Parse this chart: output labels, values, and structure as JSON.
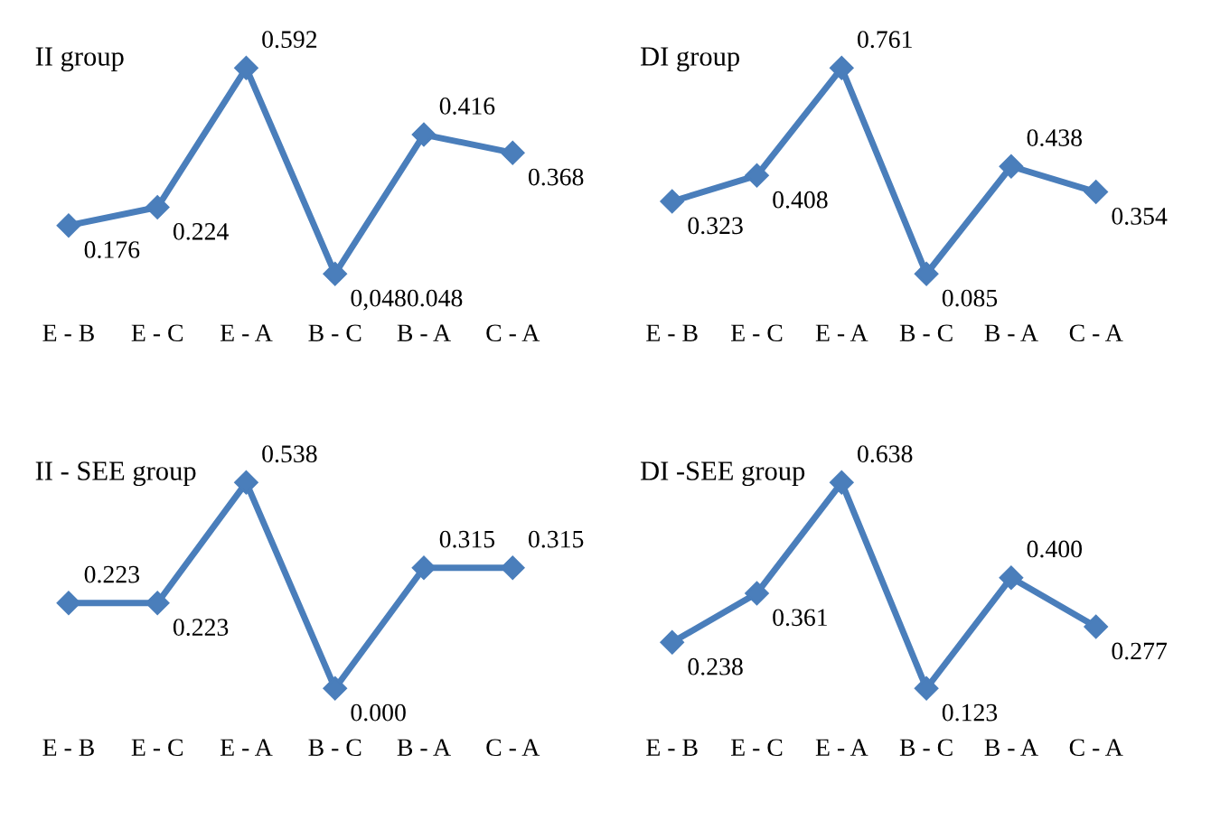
{
  "chart_data": [
    {
      "type": "line",
      "title": "II group",
      "categories": [
        "E - B",
        "E - C",
        "E - A",
        "B - C",
        "B - A",
        "C - A"
      ],
      "marker": "diamond",
      "tick_labels": "x",
      "series": [
        {
          "color": "#4a7ebb",
          "values": [
            0.176,
            0.224,
            0.592,
            0.048,
            0.416,
            0.368
          ],
          "value_labels": [
            "0.176",
            "0.224",
            "0.592",
            "0,0480.048",
            "0.416",
            "0.368"
          ]
        }
      ]
    },
    {
      "type": "line",
      "title": "DI group",
      "categories": [
        "E - B",
        "E - C",
        "E - A",
        "B - C",
        "B - A",
        "C - A"
      ],
      "marker": "diamond",
      "tick_labels": "x",
      "series": [
        {
          "color": "#4a7ebb",
          "values": [
            0.323,
            0.408,
            0.761,
            0.085,
            0.438,
            0.354
          ],
          "value_labels": [
            "0.323",
            "0.408",
            "0.761",
            "0.085",
            "0.438",
            "0.354"
          ]
        }
      ]
    },
    {
      "type": "line",
      "title": "II - SEE group",
      "categories": [
        "E - B",
        "E - C",
        "E - A",
        "B - C",
        "B - A",
        "C - A"
      ],
      "marker": "diamond",
      "tick_labels": "x",
      "series": [
        {
          "color": "#4a7ebb",
          "values": [
            0.223,
            0.223,
            0.538,
            0.0,
            0.315,
            0.315
          ],
          "value_labels": [
            "0.223",
            "0.223",
            "0.538",
            "0.000",
            "0.315",
            "0.315"
          ]
        }
      ]
    },
    {
      "type": "line",
      "title": "DI -SEE group",
      "categories": [
        "E - B",
        "E - C",
        "E - A",
        "B - C",
        "B - A",
        "C - A"
      ],
      "marker": "diamond",
      "tick_labels": "x",
      "series": [
        {
          "color": "#4a7ebb",
          "values": [
            0.238,
            0.361,
            0.638,
            0.123,
            0.4,
            0.277
          ],
          "value_labels": [
            "0.238",
            "0.361",
            "0.638",
            "0.123",
            "0.400",
            "0.277"
          ]
        }
      ]
    }
  ]
}
